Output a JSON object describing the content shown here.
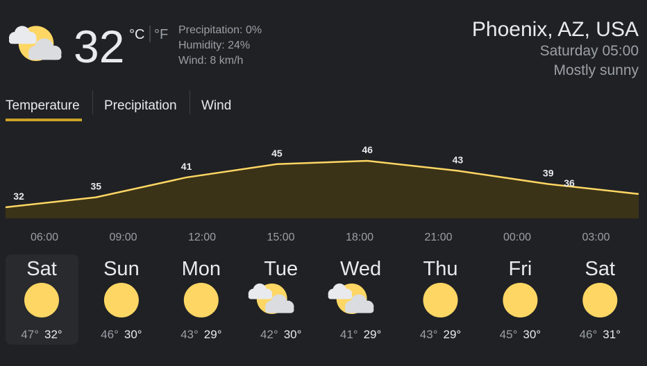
{
  "header": {
    "icon": "partly-cloudy",
    "temperature": "32",
    "unit_c": "°C",
    "unit_f": "°F",
    "precipitation": "Precipitation: 0%",
    "humidity": "Humidity: 24%",
    "wind": "Wind: 8 km/h",
    "location": "Phoenix, AZ, USA",
    "datetime": "Saturday 05:00",
    "condition": "Mostly sunny"
  },
  "tabs": [
    "Temperature",
    "Precipitation",
    "Wind"
  ],
  "hourly": {
    "color": "#fdd663",
    "values": [
      32,
      35,
      41,
      45,
      46,
      43,
      39,
      36
    ],
    "times": [
      "06:00",
      "09:00",
      "12:00",
      "15:00",
      "18:00",
      "21:00",
      "00:00",
      "03:00"
    ]
  },
  "days": [
    {
      "day": "Sat",
      "icon": "sunny",
      "high": "47°",
      "low": "32°"
    },
    {
      "day": "Sun",
      "icon": "sunny",
      "high": "46°",
      "low": "30°"
    },
    {
      "day": "Mon",
      "icon": "sunny",
      "high": "43°",
      "low": "29°"
    },
    {
      "day": "Tue",
      "icon": "partly-cloudy",
      "high": "42°",
      "low": "30°"
    },
    {
      "day": "Wed",
      "icon": "partly-cloudy",
      "high": "41°",
      "low": "29°"
    },
    {
      "day": "Thu",
      "icon": "sunny",
      "high": "43°",
      "low": "29°"
    },
    {
      "day": "Fri",
      "icon": "sunny",
      "high": "45°",
      "low": "30°"
    },
    {
      "day": "Sat",
      "icon": "sunny",
      "high": "46°",
      "low": "31°"
    }
  ]
}
